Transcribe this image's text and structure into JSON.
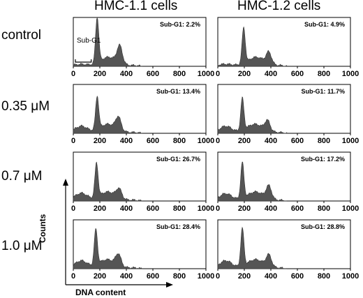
{
  "column_titles": [
    "HMC-1.1 cells",
    "HMC-1.2 cells"
  ],
  "row_labels": [
    "control",
    "0.35 μM",
    "0.7 μM",
    "1.0 μM"
  ],
  "axes": {
    "y_label": "Counts",
    "x_label": "DNA content"
  },
  "sub_g1_marker": "Sub-G1",
  "chart_data": {
    "type": "area",
    "x_range": [
      0,
      1000
    ],
    "x_ticks": [
      0,
      200,
      400,
      600,
      800,
      1000
    ],
    "panels": [
      {
        "row": 0,
        "col": 0,
        "label": "Sub-G1: 2.2%",
        "g1_peak": 180,
        "g1_height": 1.0,
        "g2_peak": 350,
        "g2_height": 0.38,
        "show_marker": true
      },
      {
        "row": 0,
        "col": 1,
        "label": "Sub-G1: 4.9%",
        "g1_peak": 195,
        "g1_height": 0.78,
        "g2_peak": 385,
        "g2_height": 0.25,
        "show_marker": false
      },
      {
        "row": 1,
        "col": 0,
        "label": "Sub-G1: 13.4%",
        "g1_peak": 180,
        "g1_height": 0.72,
        "g2_peak": 340,
        "g2_height": 0.28,
        "show_marker": false
      },
      {
        "row": 1,
        "col": 1,
        "label": "Sub-G1: 11.7%",
        "g1_peak": 185,
        "g1_height": 0.7,
        "g2_peak": 375,
        "g2_height": 0.22,
        "show_marker": false
      },
      {
        "row": 2,
        "col": 0,
        "label": "Sub-G1: 26.7%",
        "g1_peak": 175,
        "g1_height": 0.75,
        "g2_peak": 345,
        "g2_height": 0.2,
        "show_marker": false
      },
      {
        "row": 2,
        "col": 1,
        "label": "Sub-G1: 17.2%",
        "g1_peak": 185,
        "g1_height": 0.78,
        "g2_peak": 385,
        "g2_height": 0.28,
        "show_marker": false
      },
      {
        "row": 3,
        "col": 0,
        "label": "Sub-G1: 28.4%",
        "g1_peak": 170,
        "g1_height": 0.78,
        "g2_peak": 340,
        "g2_height": 0.25,
        "show_marker": false
      },
      {
        "row": 3,
        "col": 1,
        "label": "Sub-G1: 28.8%",
        "g1_peak": 185,
        "g1_height": 0.82,
        "g2_peak": 385,
        "g2_height": 0.25,
        "show_marker": false
      }
    ]
  }
}
